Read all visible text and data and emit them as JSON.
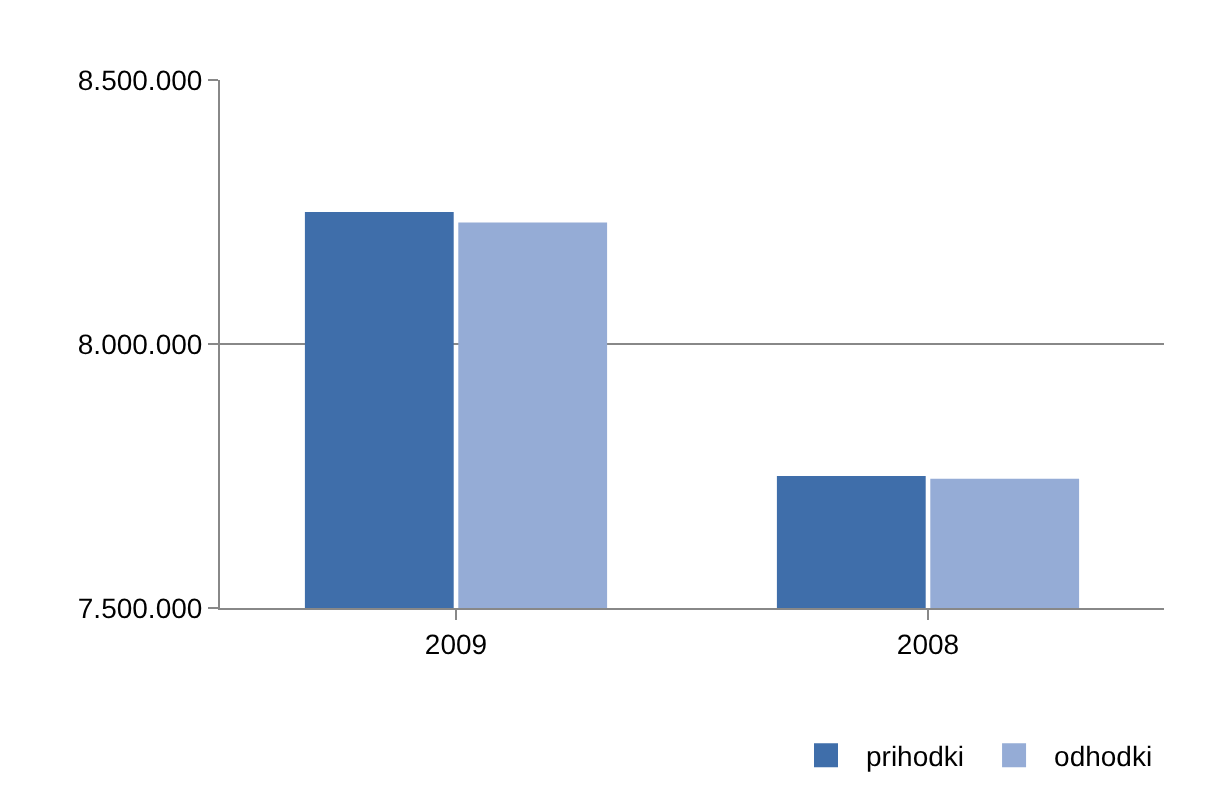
{
  "chart_data": {
    "type": "bar",
    "categories": [
      "2009",
      "2008"
    ],
    "series": [
      {
        "name": "prihodki",
        "color": "#3f6eaa",
        "values": [
          8250000,
          7750000
        ]
      },
      {
        "name": "odhodki",
        "color": "#95acd6",
        "values": [
          8230000,
          7745000
        ]
      }
    ],
    "ylim": [
      7500000,
      8500000
    ],
    "yticks": [
      {
        "value": 7500000,
        "label": "7.500.000"
      },
      {
        "value": 8000000,
        "label": "8.000.000"
      },
      {
        "value": 8500000,
        "label": "8.500.000"
      }
    ],
    "grid": "y",
    "legend": "bottom right"
  }
}
